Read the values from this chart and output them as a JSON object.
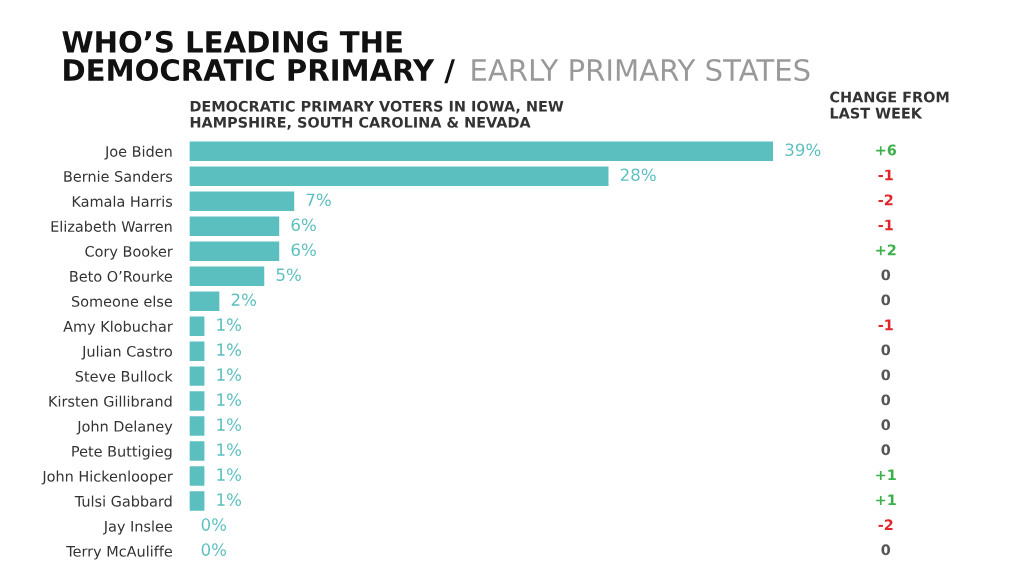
{
  "chart_data": {
    "type": "bar",
    "orientation": "horizontal",
    "title": "WHO’S LEADING THE\nDEMOCRATIC PRIMARY /",
    "subtitle": "EARLY PRIMARY STATES",
    "xlabel": "DEMOCRATIC PRIMARY VOTERS IN IOWA, NEW\nHAMPSHIRE, SOUTH CAROLINA & NEVADA",
    "categories": [
      "Joe Biden",
      "Bernie Sanders",
      "Kamala Harris",
      "Elizabeth Warren",
      "Cory Booker",
      "Beto O’Rourke",
      "Someone else",
      "Amy Klobuchar",
      "Julian Castro",
      "Steve Bullock",
      "Kirsten Gillibrand",
      "John Delaney",
      "Pete Buttigieg",
      "John Hickenlooper",
      "Tulsi Gabbard",
      "Jay Inslee",
      "Terry McAuliffe"
    ],
    "values": [
      39,
      28,
      7,
      6,
      6,
      5,
      2,
      1,
      1,
      1,
      1,
      1,
      1,
      1,
      1,
      0,
      0
    ],
    "value_labels": [
      "39%",
      "28%",
      "7%",
      "6%",
      "6%",
      "5%",
      "2%",
      "1%",
      "1%",
      "1%",
      "1%",
      "1%",
      "1%",
      "1%",
      "1%",
      "0%",
      "0%"
    ],
    "color": "#5bbfc0",
    "annotations": [
      "CHANGE FROM\nLAST WEEK",
      "+6",
      "-1",
      "-2",
      "-1",
      "+2",
      "0",
      "0",
      "-1",
      "0",
      "0",
      "0",
      "0",
      "0",
      "+1",
      "+1",
      "-2",
      "0"
    ],
    "grid": false,
    "legend": false
  }
}
